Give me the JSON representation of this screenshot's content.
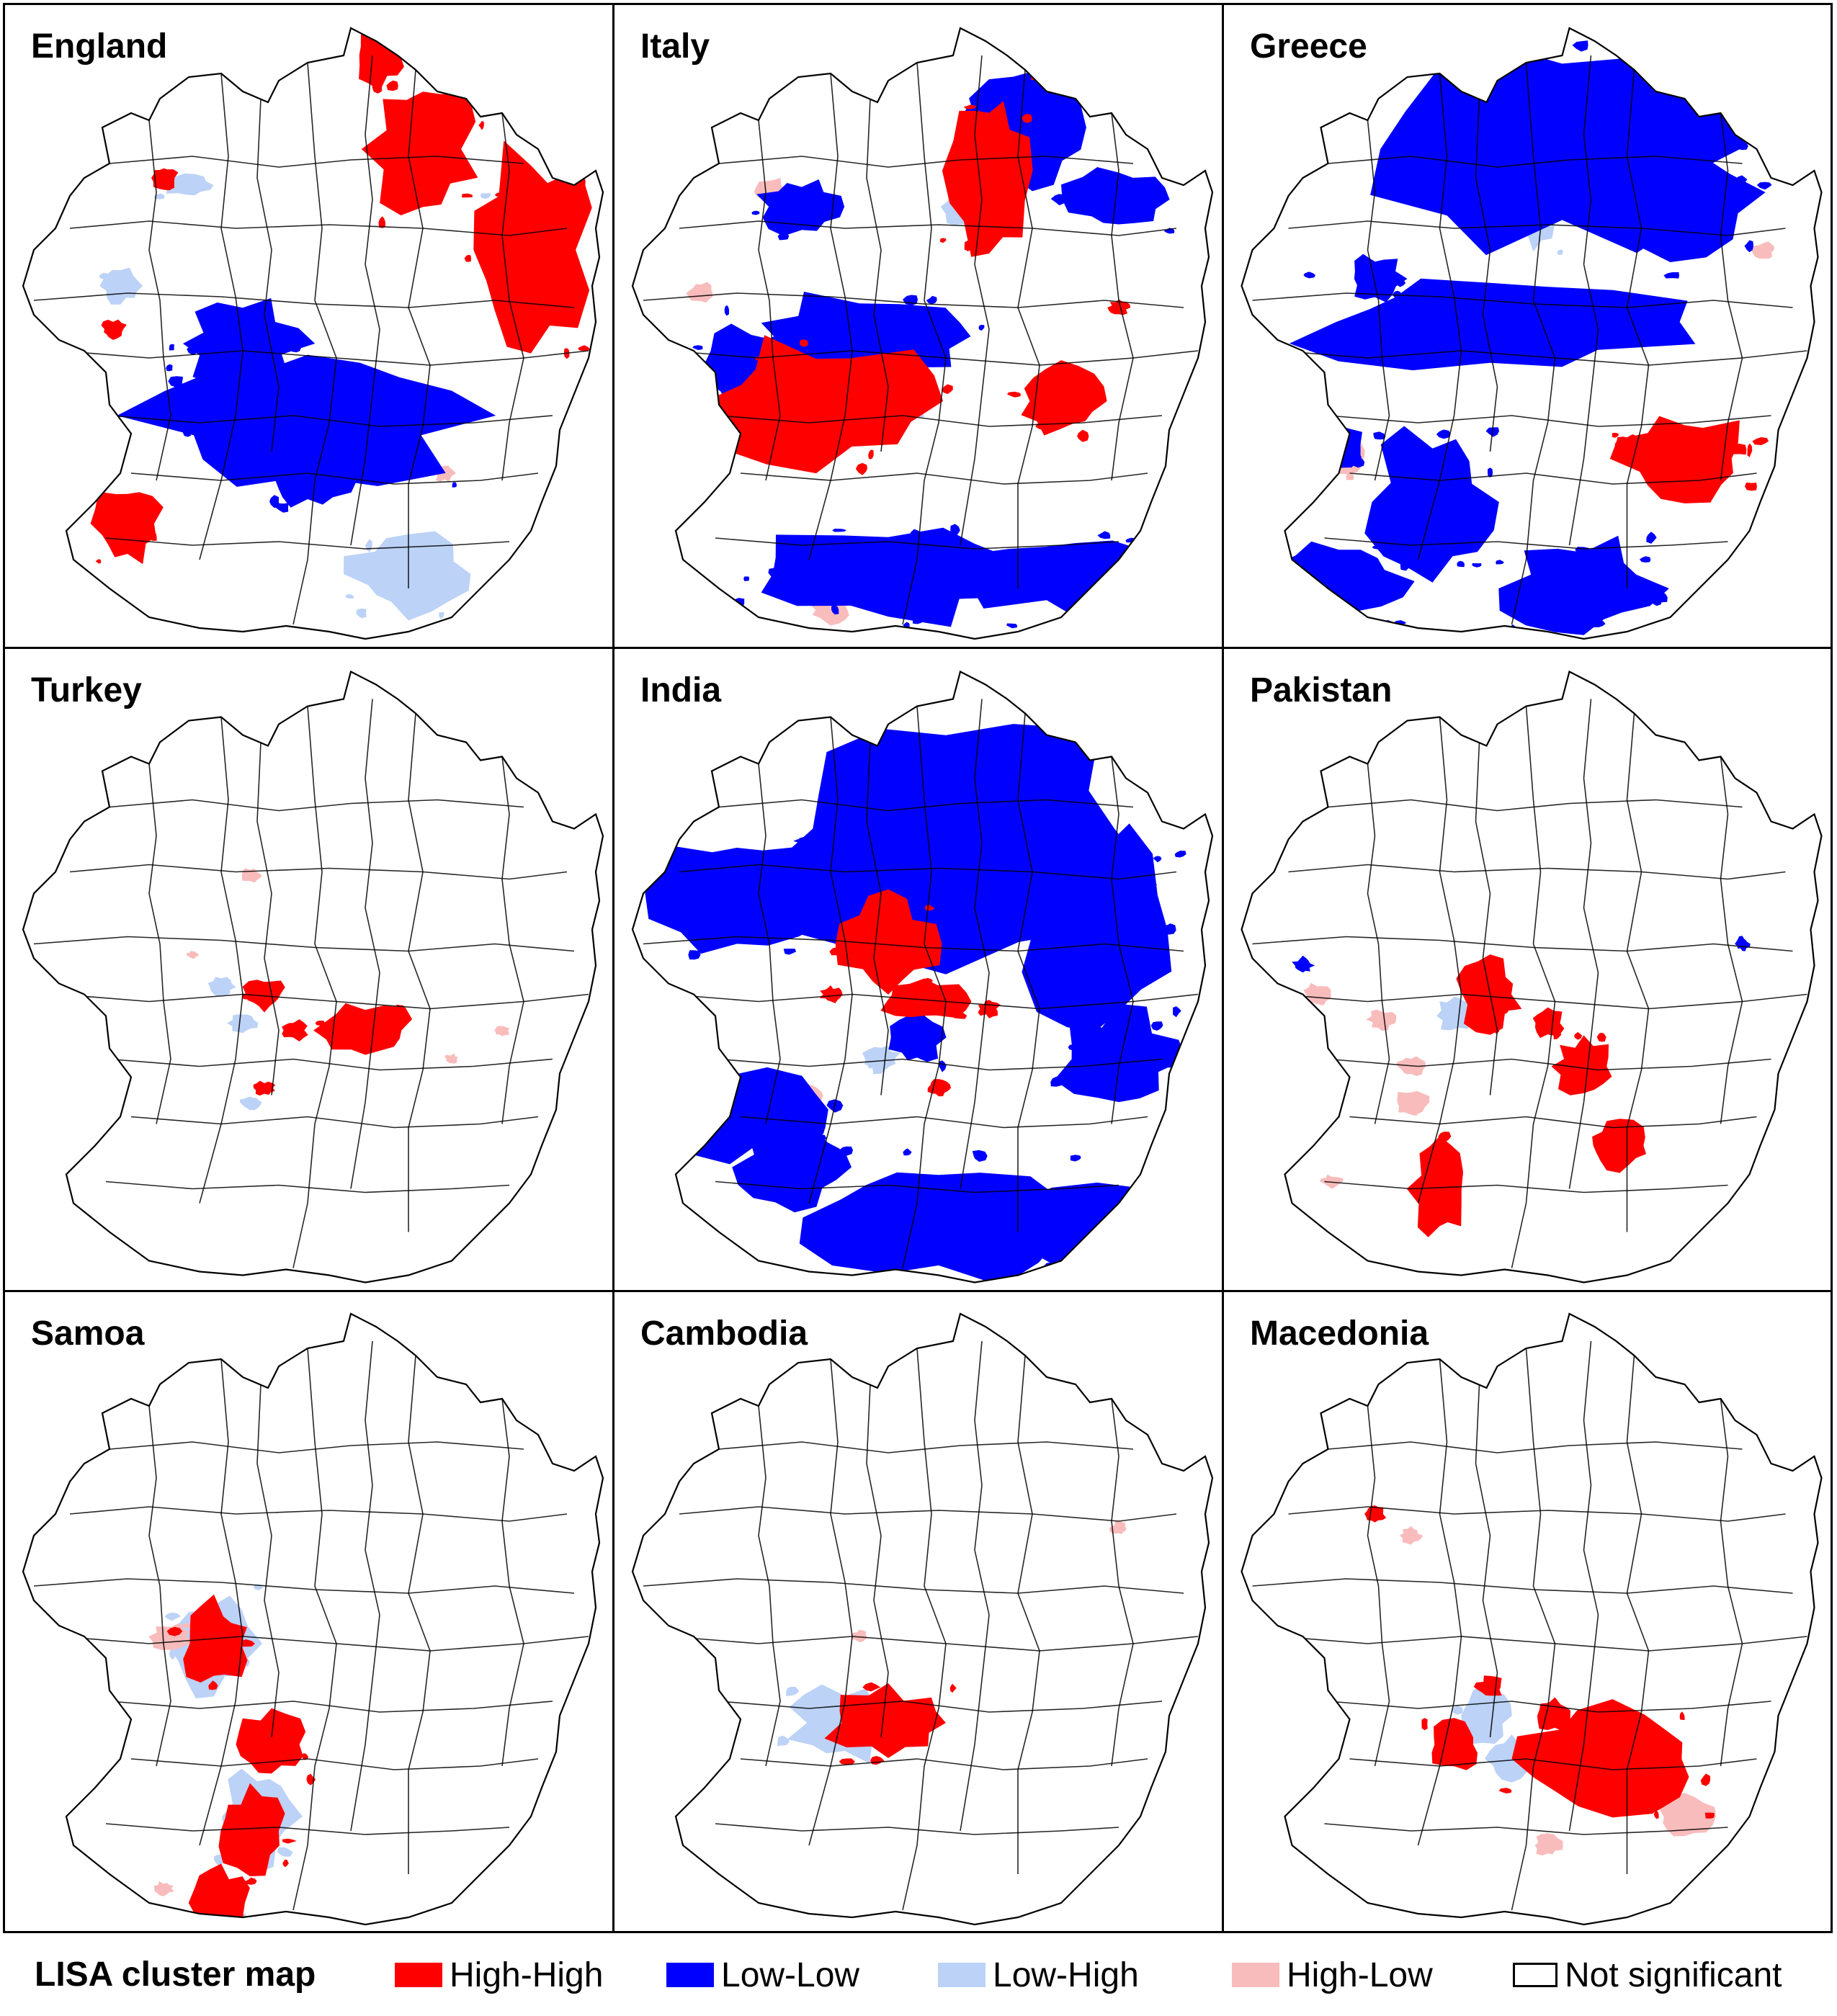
{
  "figure": {
    "panels": [
      {
        "label": "England",
        "id": "england"
      },
      {
        "label": "Italy",
        "id": "italy"
      },
      {
        "label": "Greece",
        "id": "greece"
      },
      {
        "label": "Turkey",
        "id": "turkey"
      },
      {
        "label": "India",
        "id": "india"
      },
      {
        "label": "Pakistan",
        "id": "pakistan"
      },
      {
        "label": "Samoa",
        "id": "samoa"
      },
      {
        "label": "Cambodia",
        "id": "cambodia"
      },
      {
        "label": "Macedonia",
        "id": "macedonia"
      }
    ]
  },
  "legend": {
    "title": "LISA cluster map",
    "items": [
      {
        "label": "High-High",
        "color": "#ff0000"
      },
      {
        "label": "Low-Low",
        "color": "#0000ff"
      },
      {
        "label": "Low-High",
        "color": "#bcd2f7"
      },
      {
        "label": "High-Low",
        "color": "#f9bcbc"
      },
      {
        "label": "Not significant",
        "color": "#ffffff"
      }
    ]
  },
  "colors": {
    "high_high": "#ff0000",
    "low_low": "#0000ff",
    "low_high": "#bcd2f7",
    "high_low": "#f9bcbc",
    "boundary": "#000000"
  }
}
